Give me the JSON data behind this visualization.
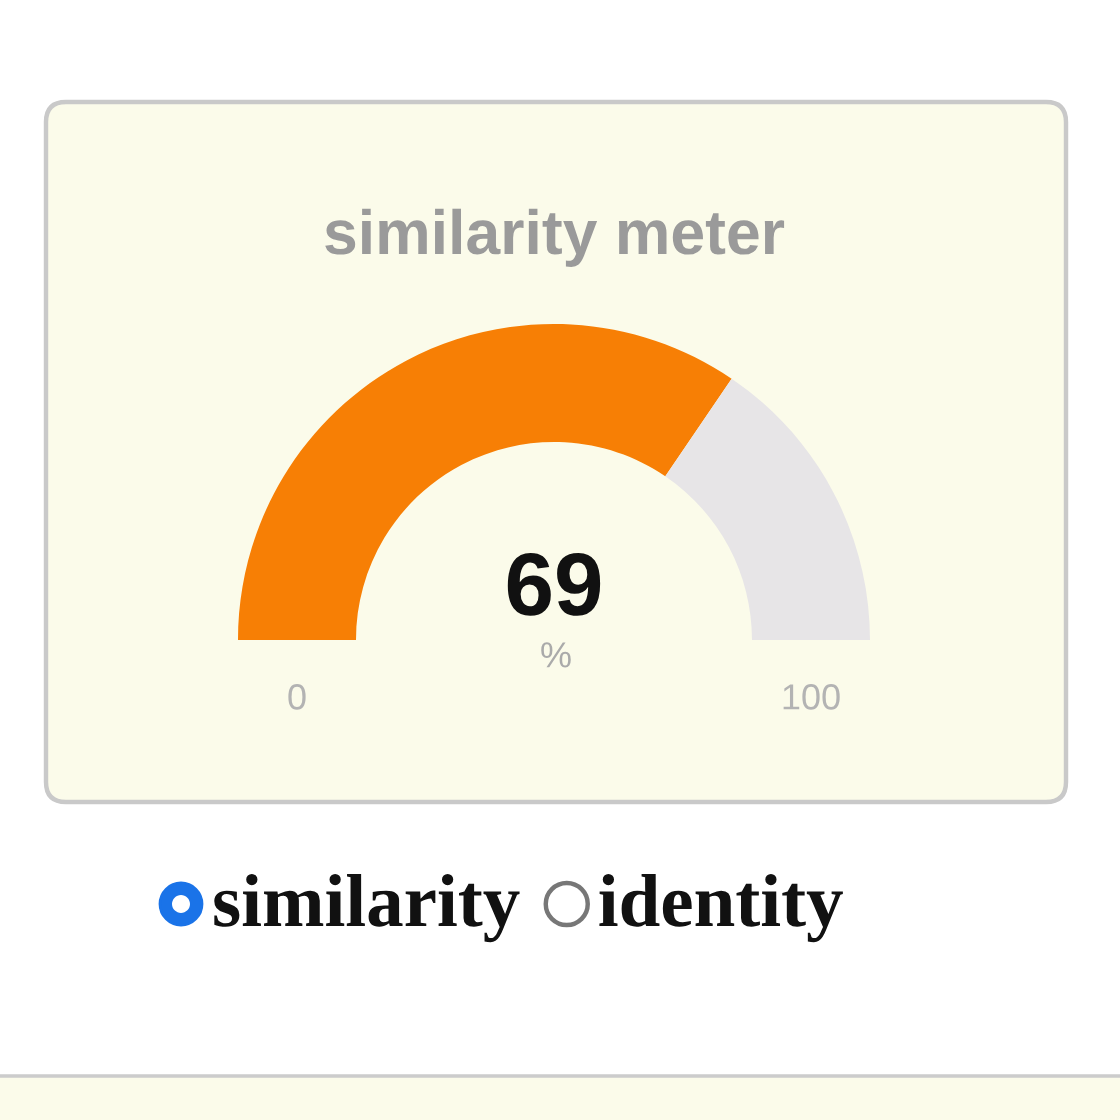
{
  "chart_data": {
    "type": "donut",
    "title": "similarity meter",
    "categories": [
      null,
      null
    ],
    "values": [
      69,
      31
    ],
    "colors": [
      "#f77f05",
      "#e7e5e7"
    ],
    "value_labels": [
      "69",
      null
    ],
    "annotations": [
      "%",
      "0",
      "100",
      "similarity",
      "identity"
    ]
  }
}
